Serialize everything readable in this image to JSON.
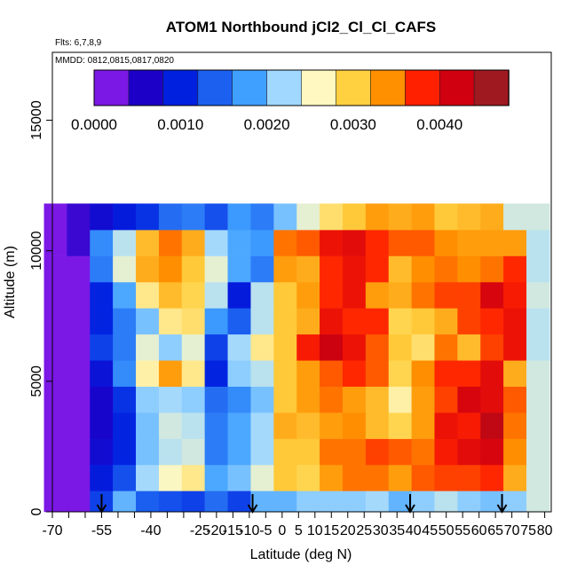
{
  "chart_data": {
    "type": "heatmap",
    "title": "ATOM1 Northbound jCl2_Cl_Cl_CAFS",
    "flights_label": "Flts: 6,7,8,9",
    "dates_label": "MMDD: 0812,0815,0817,0820",
    "xlabel": "Latitude (deg N)",
    "ylabel": "Altitude (m)",
    "xlim": [
      -70,
      82
    ],
    "ylim": [
      0,
      17600
    ],
    "x_ticks": [
      -70,
      -55,
      -40,
      -25,
      -10,
      0,
      10,
      20,
      30,
      40,
      50,
      60,
      70,
      80
    ],
    "x_tick_labels": [
      "-70",
      "-55",
      "-40",
      "-25",
      "-10",
      "0",
      "10",
      "20",
      "30",
      "40",
      "50",
      "60",
      "70",
      "80"
    ],
    "x_minor_ticks": [
      -65,
      -60,
      -50,
      -45,
      -35,
      -30,
      -20,
      -15,
      -5,
      5,
      15,
      25,
      35,
      45,
      55,
      65,
      75
    ],
    "x_minor_tick_labels": [
      "",
      "",
      "",
      "",
      "",
      "",
      "-20",
      "-15",
      "-5",
      "5",
      "15",
      "25",
      "35",
      "45",
      "55",
      "65",
      "75"
    ],
    "y_ticks": [
      0,
      5000,
      10000,
      15000
    ],
    "y_tick_labels": [
      "0",
      "5000",
      "10000",
      "15000"
    ],
    "colorbar": {
      "range": [
        0,
        0.0048
      ],
      "tick_values": [
        0,
        0.001,
        0.002,
        0.003,
        0.004
      ],
      "tick_labels": [
        "0.0000",
        "0.0010",
        "0.0020",
        "0.0030",
        "0.0040"
      ],
      "colors": [
        "#7b18e6",
        "#1c00c8",
        "#0020e0",
        "#1c60f0",
        "#40a0ff",
        "#a0d8ff",
        "#fff8c0",
        "#ffd040",
        "#ff9000",
        "#ff2000",
        "#d00010",
        "#9e1a20"
      ]
    },
    "flight_arrows_lat": [
      -55,
      -9,
      39,
      67
    ],
    "grid_lat": [
      -69,
      -62,
      -55,
      -48,
      -41,
      -34,
      -27,
      -20,
      -13,
      -6,
      1,
      8,
      15,
      22,
      29,
      36,
      43,
      50,
      57,
      64,
      71,
      78
    ],
    "grid_alt": [
      300,
      1300,
      2300,
      3300,
      4300,
      5300,
      6300,
      7300,
      8300,
      9300,
      10300,
      11300
    ],
    "grid_values": [
      [
        0.0,
        0.0,
        0.0011,
        0.0019,
        0.0013,
        0.0012,
        0.0011,
        0.0014,
        0.0011,
        0.0019,
        0.0019,
        0.0021,
        0.0021,
        0.0021,
        0.0022,
        0.0019,
        0.0021,
        0.0023,
        0.0021,
        0.002,
        0.0021,
        0.0024
      ],
      [
        0.0,
        0.0,
        0.0008,
        0.0012,
        0.0022,
        0.0026,
        0.0028,
        0.0018,
        0.002,
        0.0025,
        0.0031,
        0.003,
        0.0034,
        0.0036,
        0.0036,
        0.0034,
        0.0037,
        0.0038,
        0.0038,
        0.0039,
        0.0033,
        0.0024
      ],
      [
        0.0,
        0.0,
        0.0006,
        0.0009,
        0.002,
        0.0023,
        0.0024,
        0.0015,
        0.0018,
        0.0022,
        0.0031,
        0.0031,
        0.0036,
        0.0036,
        0.0038,
        0.0037,
        0.0036,
        0.004,
        0.0042,
        0.0043,
        0.0035,
        0.0024
      ],
      [
        0.0,
        0.0,
        0.0005,
        0.0009,
        0.002,
        0.0024,
        0.0023,
        0.0015,
        0.0018,
        0.0022,
        0.0033,
        0.0032,
        0.0034,
        0.0035,
        0.0032,
        0.003,
        0.0034,
        0.0041,
        0.004,
        0.0045,
        0.0036,
        0.0024
      ],
      [
        0.0,
        0.0,
        0.0005,
        0.001,
        0.0021,
        0.0022,
        0.0021,
        0.0014,
        0.0016,
        0.002,
        0.0031,
        0.0034,
        0.0036,
        0.0034,
        0.0032,
        0.0027,
        0.0034,
        0.0038,
        0.0043,
        0.0042,
        0.0037,
        0.0024
      ],
      [
        0.0,
        0.0,
        0.0007,
        0.0016,
        0.0027,
        0.0034,
        0.0028,
        0.0009,
        0.0021,
        0.0023,
        0.0031,
        0.0034,
        0.0037,
        0.0039,
        0.0037,
        0.003,
        0.0035,
        0.0039,
        0.0039,
        0.0042,
        0.0033,
        0.0024
      ],
      [
        0.0,
        0.0,
        0.0011,
        0.0015,
        0.0025,
        0.0021,
        0.0025,
        0.0011,
        0.0022,
        0.0028,
        0.0031,
        0.004,
        0.0044,
        0.0041,
        0.0037,
        0.0031,
        0.0029,
        0.0036,
        0.0032,
        0.0038,
        0.0041,
        0.0023
      ],
      [
        0.0,
        0.0,
        0.0009,
        0.0015,
        0.002,
        0.0028,
        0.0029,
        0.0017,
        0.0013,
        0.0023,
        0.0031,
        0.0033,
        0.0041,
        0.0039,
        0.0039,
        0.003,
        0.0031,
        0.0033,
        0.0038,
        0.0039,
        0.0041,
        0.0023
      ],
      [
        0.0,
        0.0,
        0.0009,
        0.0018,
        0.0028,
        0.0032,
        0.003,
        0.0023,
        0.0008,
        0.0023,
        0.0031,
        0.0034,
        0.0039,
        0.0041,
        0.0034,
        0.0033,
        0.0036,
        0.0038,
        0.0038,
        0.0043,
        0.004,
        0.0024
      ],
      [
        0.0,
        0.0,
        0.0015,
        0.0025,
        0.0033,
        0.0035,
        0.0031,
        0.0025,
        0.0018,
        0.0015,
        0.0034,
        0.0033,
        0.0039,
        0.0041,
        0.0039,
        0.0032,
        0.0035,
        0.0036,
        0.0035,
        0.0036,
        0.0039,
        0.0023
      ],
      [
        0.0,
        0.0003,
        0.0016,
        0.0023,
        0.0032,
        0.0036,
        0.0033,
        0.0022,
        0.0018,
        0.0017,
        0.0036,
        0.0037,
        0.0041,
        0.0042,
        0.0039,
        0.0037,
        0.0037,
        0.0035,
        0.0034,
        0.0034,
        0.0034,
        0.0023
      ],
      [
        0.0,
        0.0003,
        0.0006,
        0.0008,
        0.001,
        0.0014,
        0.0015,
        0.0012,
        0.0017,
        0.0015,
        0.002,
        0.0025,
        0.0029,
        0.0031,
        0.0034,
        0.0033,
        0.0034,
        0.0031,
        0.0032,
        0.0033,
        0.0024,
        0.0024
      ]
    ]
  }
}
